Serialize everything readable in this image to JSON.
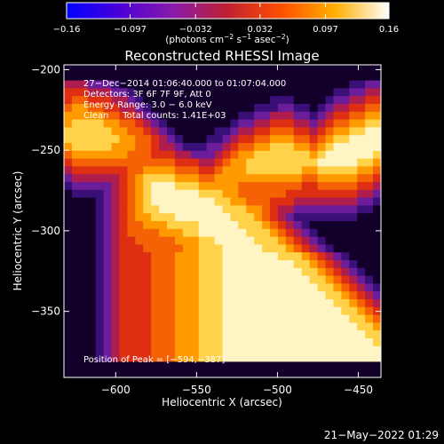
{
  "chart_data": {
    "type": "heatmap",
    "title": "Reconstructed RHESSI Image",
    "xlabel": "Heliocentric X (arcsec)",
    "ylabel": "Heliocentric Y (arcsec)",
    "xlim": [
      -632,
      -436
    ],
    "ylim": [
      -391,
      -197
    ],
    "x_ticks": [
      -600,
      -550,
      -500,
      -450
    ],
    "x_tick_labels": [
      "−600",
      "−550",
      "−500",
      "−450"
    ],
    "y_ticks": [
      -200,
      -250,
      -300,
      -350
    ],
    "y_tick_labels": [
      "−200",
      "−250",
      "−300",
      "−350"
    ],
    "colorbar": {
      "min": -0.16,
      "max": 0.16,
      "ticks": [
        -0.16,
        -0.097,
        -0.032,
        0.032,
        0.097,
        0.16
      ],
      "tick_labels": [
        "−0.16",
        "−0.097",
        "−0.032",
        "0.032",
        "0.097",
        "0.16"
      ],
      "unit_parts": [
        "(photons cm",
        "−2",
        " s",
        "−1",
        " asec",
        "−2",
        ")"
      ],
      "colors": [
        "#0000ff",
        "#4b00d8",
        "#8a1ca8",
        "#c02030",
        "#ff5000",
        "#ffb000",
        "#ffffff"
      ]
    },
    "annotations": [
      "27−Dec−2014 01:06:40.000 to 01:07:04.000",
      "Detectors: 3F 6F 7F 9F, Att 0",
      "Energy Range: 3.0 − 6.0 keV",
      "Clean     Total counts: 1.41E+03",
      "Position of Peak = [−594,−387]"
    ],
    "peak": [
      -594,
      -387
    ],
    "image_grid": {
      "nx": 40,
      "ny": 40,
      "rows_top_to_bottom": [
        "0000000000000000000000000000000000000000",
        "0000000000000000000000000000000000000000",
        "3332221000000000000000000000000000001122",
        "4443332210000000000000000000000000112233",
        "4554443321000000000000000011100001223344",
        "5665544332100000000000001112211012334455",
        "6666655443210000000000112233322123445566",
        "6777766554321000000001223344433234556677",
        "7777776655432100000112334455544345667788",
        "7777777665543210001123445566655456778888",
        "6777776665543321112234556677766567888888",
        "5666666655544433222345667777777678888887",
        "4555555555555544433456677777777788888776",
        "3444444455666655544566677777776677777665",
        "2333333456777766655666666666665566666554",
        "1222223456788877766666555555554455555443",
        "0111123456788888877766555555444444444332",
        "0000123456788888888776655544433333333221",
        "0000123456778888888877766543322222222110",
        "0000123456677788888887776543211111111000",
        "0000123455666777788888777654321000000000",
        "0000123455556667788888877765432100000000",
        "0000123445555566677888887776543210000000",
        "0000123444555556677788888777654321000000",
        "0000123444455566677788888887776543210000",
        "0000123444455566677788888888877654321000",
        "0000123444455566677788888888887765432100",
        "0000123444455566677788888888888776543210",
        "0000123444455566677788888888888877654321",
        "0000123444455566677788888888888887765432",
        "0000123444455566677788888888888888776543",
        "0000123444455566677788888888888888877654",
        "0000123444455566677788888888888888887765",
        "0000123444455566677788888888888888888776",
        "0000123444455566677788888888888888888877",
        "0000123444455566677788888888888888888887",
        "0000123444455566677788888888888888888888",
        "0000123444455566677788888888888888888888",
        "0000000000000000000000000000000000000000",
        "0000000000000000000000000000000000000000"
      ]
    }
  },
  "footer": {
    "timestamp": "21−May−2022 01:29"
  }
}
